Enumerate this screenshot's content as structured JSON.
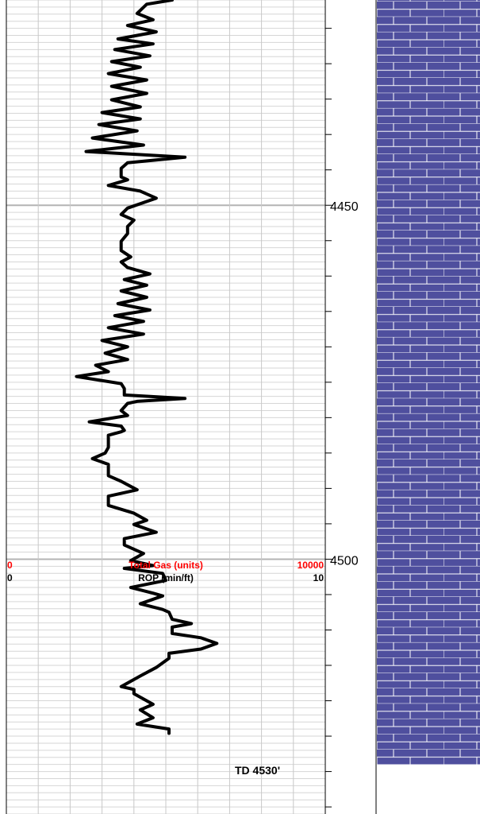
{
  "chart_data": {
    "type": "line",
    "title": "",
    "depth_axis": {
      "unit": "ft",
      "range": [
        4421,
        4536
      ],
      "major_tick_labels": [
        4450,
        4500
      ]
    },
    "scales": [
      {
        "name": "Total Gas (units)",
        "min_label": "0",
        "max_label": "10000",
        "color": "#ff0000"
      },
      {
        "name": "ROP (min/ft)",
        "min_label": "0",
        "max_label": "10",
        "color": "#000000"
      }
    ],
    "series": [
      {
        "name": "ROP (min/ft)",
        "x_range": [
          0,
          10
        ],
        "points": [
          [
            5.2,
            4421.0
          ],
          [
            4.4,
            4421.6
          ],
          [
            4.1,
            4422.9
          ],
          [
            4.6,
            4423.8
          ],
          [
            3.8,
            4424.6
          ],
          [
            4.7,
            4425.5
          ],
          [
            3.5,
            4426.5
          ],
          [
            4.6,
            4427.2
          ],
          [
            3.4,
            4428.0
          ],
          [
            4.5,
            4428.9
          ],
          [
            3.3,
            4429.7
          ],
          [
            4.2,
            4430.5
          ],
          [
            3.2,
            4431.4
          ],
          [
            4.4,
            4432.3
          ],
          [
            3.3,
            4433.2
          ],
          [
            4.4,
            4434.2
          ],
          [
            3.3,
            4435.1
          ],
          [
            4.2,
            4436.1
          ],
          [
            3.0,
            4436.9
          ],
          [
            4.2,
            4437.8
          ],
          [
            2.9,
            4438.6
          ],
          [
            4.1,
            4439.5
          ],
          [
            2.7,
            4440.5
          ],
          [
            4.3,
            4441.5
          ],
          [
            2.5,
            4442.4
          ],
          [
            5.6,
            4443.2
          ],
          [
            3.8,
            4444.0
          ],
          [
            3.6,
            4444.8
          ],
          [
            3.6,
            4446.0
          ],
          [
            3.8,
            4446.4
          ],
          [
            3.2,
            4447.2
          ],
          [
            4.2,
            4448.0
          ],
          [
            4.7,
            4449.0
          ],
          [
            3.8,
            4450.4
          ],
          [
            3.6,
            4451.3
          ],
          [
            4.0,
            4452.1
          ],
          [
            3.8,
            4453.0
          ],
          [
            3.8,
            4454.0
          ],
          [
            3.6,
            4455.1
          ],
          [
            3.6,
            4456.4
          ],
          [
            3.9,
            4457.3
          ],
          [
            3.6,
            4458.0
          ],
          [
            3.8,
            4458.8
          ],
          [
            4.5,
            4459.7
          ],
          [
            3.7,
            4460.5
          ],
          [
            4.4,
            4461.3
          ],
          [
            3.6,
            4462.1
          ],
          [
            4.4,
            4463.0
          ],
          [
            3.5,
            4463.9
          ],
          [
            4.5,
            4464.8
          ],
          [
            3.4,
            4465.6
          ],
          [
            4.3,
            4466.4
          ],
          [
            3.2,
            4467.3
          ],
          [
            4.3,
            4468.2
          ],
          [
            3.0,
            4469.1
          ],
          [
            3.8,
            4470.0
          ],
          [
            3.1,
            4470.9
          ],
          [
            3.8,
            4471.8
          ],
          [
            2.8,
            4472.6
          ],
          [
            3.2,
            4473.5
          ],
          [
            2.2,
            4474.2
          ],
          [
            3.6,
            4475.2
          ],
          [
            3.7,
            4475.9
          ],
          [
            3.7,
            4476.8
          ],
          [
            5.6,
            4477.3
          ],
          [
            4.1,
            4477.7
          ],
          [
            3.8,
            4478.0
          ],
          [
            3.6,
            4479.0
          ],
          [
            3.8,
            4479.7
          ],
          [
            2.6,
            4480.6
          ],
          [
            3.6,
            4481.2
          ],
          [
            3.7,
            4481.8
          ],
          [
            3.6,
            4482.0
          ],
          [
            3.2,
            4482.5
          ],
          [
            3.2,
            4483.4
          ],
          [
            3.2,
            4484.2
          ],
          [
            3.1,
            4485.0
          ],
          [
            2.7,
            4485.8
          ],
          [
            3.2,
            4486.6
          ],
          [
            3.2,
            4487.6
          ],
          [
            3.2,
            4488.2
          ],
          [
            3.6,
            4489.0
          ],
          [
            4.1,
            4490.2
          ],
          [
            3.2,
            4491.1
          ],
          [
            3.2,
            4492.4
          ],
          [
            4.0,
            4493.5
          ],
          [
            4.4,
            4494.5
          ],
          [
            4.0,
            4495.1
          ],
          [
            4.7,
            4496.2
          ],
          [
            3.7,
            4497.1
          ],
          [
            3.7,
            4498.0
          ],
          [
            4.3,
            4499.2
          ],
          [
            3.9,
            4500.2
          ],
          [
            4.6,
            4500.9
          ],
          [
            3.7,
            4501.3
          ],
          [
            4.9,
            4502.0
          ],
          [
            5.0,
            4503.0
          ],
          [
            3.9,
            4504.0
          ],
          [
            4.6,
            4504.8
          ],
          [
            4.9,
            4505.2
          ],
          [
            4.2,
            4506.3
          ],
          [
            4.9,
            4507.1
          ],
          [
            5.1,
            4507.5
          ],
          [
            5.2,
            4508.5
          ],
          [
            5.8,
            4509.1
          ],
          [
            5.2,
            4509.6
          ],
          [
            5.2,
            4510.5
          ],
          [
            6.1,
            4511.1
          ],
          [
            6.6,
            4511.9
          ],
          [
            6.1,
            4512.7
          ],
          [
            5.1,
            4513.3
          ],
          [
            5.1,
            4514.0
          ],
          [
            4.7,
            4515.3
          ],
          [
            4.2,
            4516.5
          ],
          [
            3.6,
            4518.0
          ],
          [
            4.0,
            4518.4
          ],
          [
            4.0,
            4519.0
          ],
          [
            4.6,
            4520.5
          ],
          [
            4.2,
            4521.3
          ],
          [
            4.6,
            4522.4
          ],
          [
            4.1,
            4523.3
          ],
          [
            5.1,
            4524.0
          ],
          [
            5.1,
            4524.6
          ]
        ]
      }
    ],
    "annotations": [
      {
        "text": "TD 4530'",
        "depth": 4529.8
      }
    ],
    "lithology_track": {
      "pattern": "brick",
      "fill_color": "#4f4f9e",
      "top_depth": 4421,
      "bottom_depth": 4529
    },
    "grid": true
  }
}
